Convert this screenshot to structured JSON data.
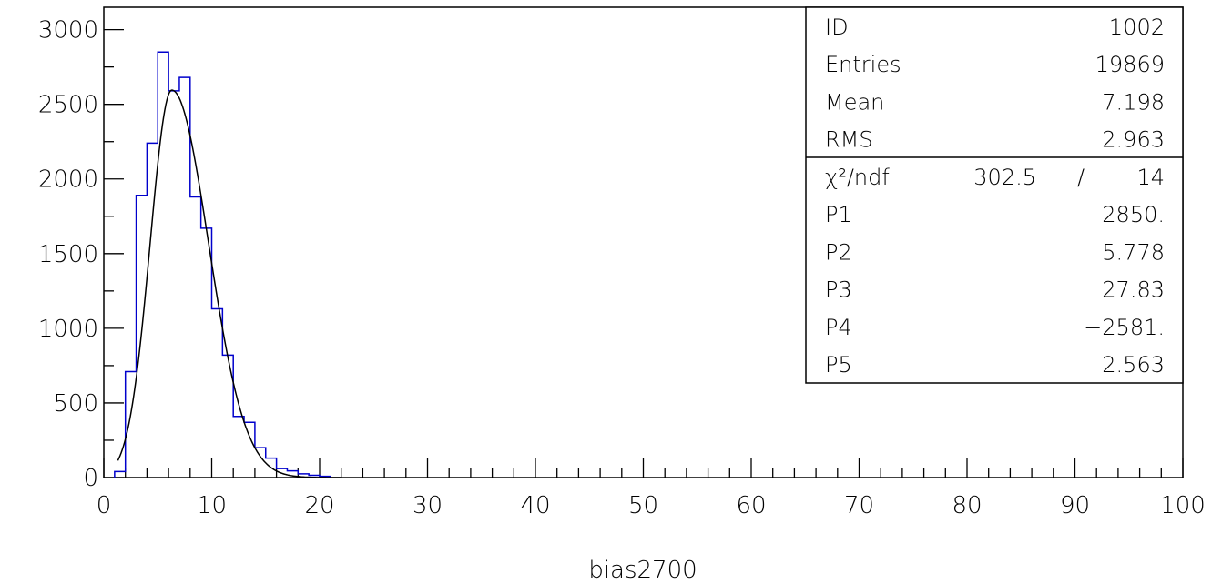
{
  "chart_data": {
    "type": "bar",
    "xlabel": "bias2700",
    "ylabel": "",
    "xlim": [
      0,
      100
    ],
    "ylim": [
      0,
      3000
    ],
    "x_ticks": [
      "0",
      "10",
      "20",
      "30",
      "40",
      "50",
      "60",
      "70",
      "80",
      "90",
      "100"
    ],
    "y_ticks": [
      "0",
      "500",
      "1000",
      "1500",
      "2000",
      "2500",
      "3000"
    ],
    "histogram": {
      "bin_width": 1,
      "bin_edges_start": 1,
      "values": [
        40,
        710,
        1890,
        2240,
        2850,
        2590,
        2680,
        1880,
        1670,
        1130,
        820,
        410,
        370,
        200,
        130,
        60,
        45,
        25,
        15,
        8
      ]
    },
    "fit": {
      "params": [
        2850,
        5.778,
        27.83,
        -2581,
        2.563
      ],
      "x_range": [
        1.3,
        22
      ]
    },
    "stats": {
      "rows": [
        {
          "label": "ID",
          "value": "1002"
        },
        {
          "label": "Entries",
          "value": "19869"
        },
        {
          "label": "Mean",
          "value": "7.198"
        },
        {
          "label": "RMS",
          "value": "2.963"
        }
      ],
      "fit_rows": [
        {
          "label": "χ²/ndf",
          "mid": "302.5",
          "sep": "/",
          "value": "14"
        },
        {
          "label": "P1",
          "value": "2850."
        },
        {
          "label": "P2",
          "value": "5.778"
        },
        {
          "label": "P3",
          "value": "27.83"
        },
        {
          "label": "P4",
          "value": "−2581."
        },
        {
          "label": "P5",
          "value": "2.563"
        }
      ]
    },
    "colors": {
      "histogram": "#0000cc",
      "fit": "#000000",
      "axes": "#000000"
    }
  }
}
